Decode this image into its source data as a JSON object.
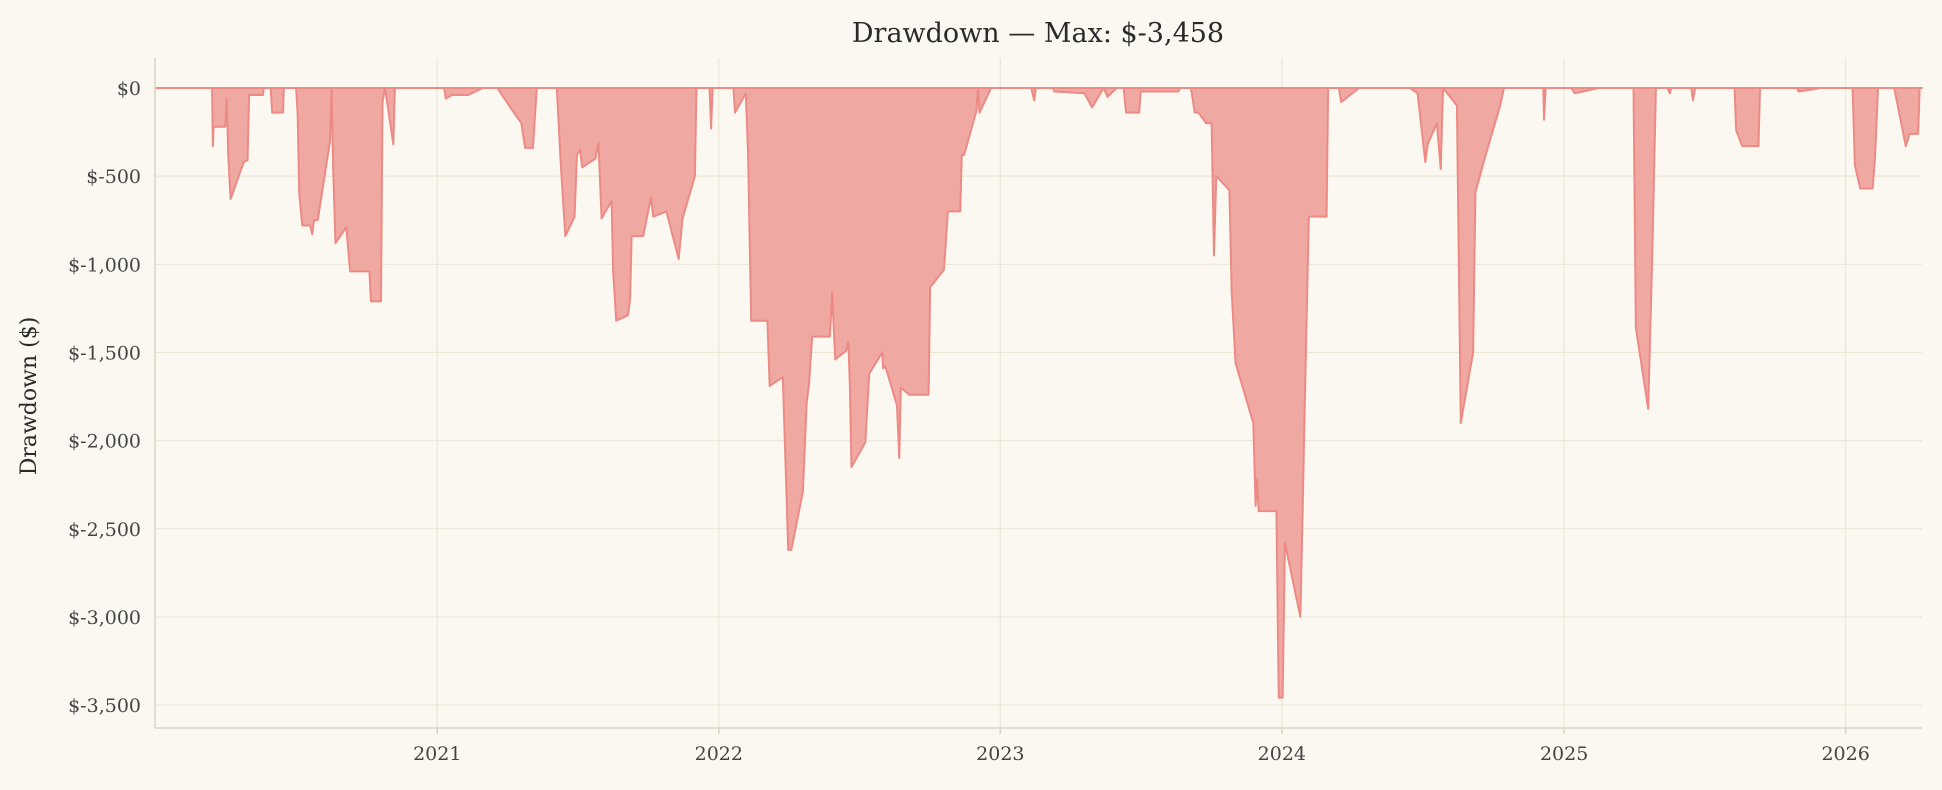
{
  "chart_data": {
    "type": "area",
    "title": "Drawdown — Max: $-3,458",
    "xlabel": "",
    "ylabel": "Drawdown ($)",
    "xlim": [
      "2020-01-01",
      "2026-04-10"
    ],
    "ylim": [
      -3630,
      170
    ],
    "y_ticks": [
      0,
      -500,
      -1000,
      -1500,
      -2000,
      -2500,
      -3000,
      -3500
    ],
    "y_tick_labels": [
      "$0",
      "$-500",
      "$-1,000",
      "$-1,500",
      "$-2,000",
      "$-2,500",
      "$-3,000",
      "$-3,500"
    ],
    "x_ticks": [
      "2021-01-01",
      "2022-01-01",
      "2023-01-01",
      "2024-01-01",
      "2025-01-01",
      "2026-01-01"
    ],
    "x_tick_labels": [
      "2021",
      "2022",
      "2023",
      "2024",
      "2025",
      "2026"
    ],
    "grid": true,
    "fill_color": "#f0a9a2",
    "line_color": "#ec8a86",
    "series": [
      {
        "points": [
          [
            "2020-01-01",
            0
          ],
          [
            "2020-03-15",
            0
          ],
          [
            "2020-03-16",
            -330
          ],
          [
            "2020-03-17",
            -220
          ],
          [
            "2020-04-01",
            -220
          ],
          [
            "2020-04-03",
            -60
          ],
          [
            "2020-04-05",
            -380
          ],
          [
            "2020-04-08",
            -630
          ],
          [
            "2020-04-25",
            -420
          ],
          [
            "2020-04-30",
            -410
          ],
          [
            "2020-05-02",
            -40
          ],
          [
            "2020-05-20",
            -40
          ],
          [
            "2020-05-21",
            0
          ],
          [
            "2020-05-30",
            0
          ],
          [
            "2020-06-01",
            -140
          ],
          [
            "2020-06-15",
            -140
          ],
          [
            "2020-06-16",
            0
          ],
          [
            "2020-07-02",
            0
          ],
          [
            "2020-07-04",
            -150
          ],
          [
            "2020-07-06",
            -600
          ],
          [
            "2020-07-10",
            -780
          ],
          [
            "2020-07-20",
            -780
          ],
          [
            "2020-07-23",
            -830
          ],
          [
            "2020-07-25",
            -750
          ],
          [
            "2020-07-30",
            -750
          ],
          [
            "2020-08-15",
            -300
          ],
          [
            "2020-08-17",
            0
          ],
          [
            "2020-08-19",
            -450
          ],
          [
            "2020-08-22",
            -880
          ],
          [
            "2020-09-05",
            -790
          ],
          [
            "2020-09-10",
            -1040
          ],
          [
            "2020-10-05",
            -1040
          ],
          [
            "2020-10-07",
            -1210
          ],
          [
            "2020-10-20",
            -1210
          ],
          [
            "2020-10-22",
            -80
          ],
          [
            "2020-10-25",
            0
          ],
          [
            "2020-10-28",
            -80
          ],
          [
            "2020-11-05",
            -320
          ],
          [
            "2020-11-07",
            0
          ],
          [
            "2021-01-10",
            0
          ],
          [
            "2021-01-12",
            -60
          ],
          [
            "2021-01-20",
            -40
          ],
          [
            "2021-02-10",
            -40
          ],
          [
            "2021-03-01",
            0
          ],
          [
            "2021-03-20",
            0
          ],
          [
            "2021-04-01",
            -80
          ],
          [
            "2021-04-20",
            -200
          ],
          [
            "2021-04-22",
            -260
          ],
          [
            "2021-04-25",
            -340
          ],
          [
            "2021-05-05",
            -340
          ],
          [
            "2021-05-10",
            0
          ],
          [
            "2021-06-05",
            0
          ],
          [
            "2021-06-10",
            -420
          ],
          [
            "2021-06-16",
            -840
          ],
          [
            "2021-06-28",
            -730
          ],
          [
            "2021-07-01",
            -380
          ],
          [
            "2021-07-05",
            -350
          ],
          [
            "2021-07-08",
            -450
          ],
          [
            "2021-07-25",
            -400
          ],
          [
            "2021-07-29",
            -310
          ],
          [
            "2021-08-02",
            -740
          ],
          [
            "2021-08-15",
            -640
          ],
          [
            "2021-08-17",
            -1040
          ],
          [
            "2021-08-21",
            -1320
          ],
          [
            "2021-09-05",
            -1290
          ],
          [
            "2021-09-08",
            -1200
          ],
          [
            "2021-09-10",
            -840
          ],
          [
            "2021-09-25",
            -840
          ],
          [
            "2021-10-05",
            -620
          ],
          [
            "2021-10-08",
            -730
          ],
          [
            "2021-10-25",
            -700
          ],
          [
            "2021-11-10",
            -970
          ],
          [
            "2021-11-15",
            -740
          ],
          [
            "2021-12-01",
            -500
          ],
          [
            "2021-12-03",
            0
          ],
          [
            "2021-12-20",
            0
          ],
          [
            "2021-12-22",
            -230
          ],
          [
            "2021-12-24",
            0
          ],
          [
            "2022-01-20",
            0
          ],
          [
            "2022-01-22",
            -140
          ],
          [
            "2022-02-05",
            -30
          ],
          [
            "2022-02-08",
            -380
          ],
          [
            "2022-02-12",
            -1320
          ],
          [
            "2022-03-05",
            -1320
          ],
          [
            "2022-03-08",
            -1690
          ],
          [
            "2022-03-25",
            -1640
          ],
          [
            "2022-04-01",
            -2620
          ],
          [
            "2022-04-05",
            -2620
          ],
          [
            "2022-04-20",
            -2290
          ],
          [
            "2022-04-25",
            -1780
          ],
          [
            "2022-04-28",
            -1680
          ],
          [
            "2022-05-02",
            -1410
          ],
          [
            "2022-05-25",
            -1410
          ],
          [
            "2022-05-28",
            -1160
          ],
          [
            "2022-05-30",
            -1360
          ],
          [
            "2022-06-01",
            -1540
          ],
          [
            "2022-06-15",
            -1490
          ],
          [
            "2022-06-18",
            -1440
          ],
          [
            "2022-06-20",
            -1700
          ],
          [
            "2022-06-22",
            -2150
          ],
          [
            "2022-07-10",
            -2010
          ],
          [
            "2022-07-15",
            -1620
          ],
          [
            "2022-08-01",
            -1500
          ],
          [
            "2022-08-02",
            -1590
          ],
          [
            "2022-08-05",
            -1580
          ],
          [
            "2022-08-20",
            -1800
          ],
          [
            "2022-08-23",
            -2100
          ],
          [
            "2022-08-25",
            -1700
          ],
          [
            "2022-09-05",
            -1740
          ],
          [
            "2022-09-30",
            -1740
          ],
          [
            "2022-10-02",
            -1130
          ],
          [
            "2022-10-20",
            -1030
          ],
          [
            "2022-10-25",
            -700
          ],
          [
            "2022-11-10",
            -700
          ],
          [
            "2022-11-12",
            -380
          ],
          [
            "2022-11-15",
            -380
          ],
          [
            "2022-12-01",
            -130
          ],
          [
            "2022-12-03",
            0
          ],
          [
            "2022-12-05",
            -140
          ],
          [
            "2022-12-20",
            0
          ],
          [
            "2023-02-10",
            0
          ],
          [
            "2023-02-14",
            -70
          ],
          [
            "2023-02-16",
            0
          ],
          [
            "2023-03-10",
            0
          ],
          [
            "2023-03-12",
            -20
          ],
          [
            "2023-04-20",
            -30
          ],
          [
            "2023-04-30",
            -110
          ],
          [
            "2023-05-15",
            0
          ],
          [
            "2023-05-20",
            -50
          ],
          [
            "2023-06-01",
            0
          ],
          [
            "2023-06-10",
            0
          ],
          [
            "2023-06-13",
            -140
          ],
          [
            "2023-06-30",
            -140
          ],
          [
            "2023-07-02",
            -20
          ],
          [
            "2023-08-20",
            -20
          ],
          [
            "2023-08-22",
            0
          ],
          [
            "2023-09-05",
            0
          ],
          [
            "2023-09-07",
            -50
          ],
          [
            "2023-09-10",
            -140
          ],
          [
            "2023-09-15",
            -140
          ],
          [
            "2023-09-25",
            -200
          ],
          [
            "2023-10-02",
            -200
          ],
          [
            "2023-10-05",
            -950
          ],
          [
            "2023-10-08",
            -500
          ],
          [
            "2023-10-25",
            -580
          ],
          [
            "2023-10-28",
            -1160
          ],
          [
            "2023-11-02",
            -1560
          ],
          [
            "2023-11-25",
            -1900
          ],
          [
            "2023-11-28",
            -2370
          ],
          [
            "2023-11-30",
            -2220
          ],
          [
            "2023-12-02",
            -2400
          ],
          [
            "2023-12-25",
            -2400
          ],
          [
            "2023-12-28",
            -3458
          ],
          [
            "2024-01-02",
            -3458
          ],
          [
            "2024-01-05",
            -2580
          ],
          [
            "2024-01-25",
            -3000
          ],
          [
            "2024-01-28",
            -2400
          ],
          [
            "2024-01-30",
            -1940
          ],
          [
            "2024-02-05",
            -730
          ],
          [
            "2024-02-28",
            -730
          ],
          [
            "2024-03-01",
            0
          ],
          [
            "2024-03-15",
            0
          ],
          [
            "2024-03-18",
            -80
          ],
          [
            "2024-04-10",
            0
          ],
          [
            "2024-06-15",
            0
          ],
          [
            "2024-06-25",
            -30
          ],
          [
            "2024-07-05",
            -420
          ],
          [
            "2024-07-08",
            -320
          ],
          [
            "2024-07-20",
            -200
          ],
          [
            "2024-07-25",
            -460
          ],
          [
            "2024-07-28",
            0
          ],
          [
            "2024-08-15",
            -100
          ],
          [
            "2024-08-20",
            -1900
          ],
          [
            "2024-09-05",
            -1500
          ],
          [
            "2024-09-08",
            -590
          ],
          [
            "2024-09-20",
            -400
          ],
          [
            "2024-10-10",
            -100
          ],
          [
            "2024-10-15",
            0
          ],
          [
            "2024-12-05",
            0
          ],
          [
            "2024-12-06",
            -180
          ],
          [
            "2024-12-08",
            0
          ],
          [
            "2025-01-10",
            0
          ],
          [
            "2025-01-15",
            -30
          ],
          [
            "2025-02-15",
            0
          ],
          [
            "2025-04-01",
            0
          ],
          [
            "2025-04-04",
            -1360
          ],
          [
            "2025-04-20",
            -1820
          ],
          [
            "2025-04-25",
            -1000
          ],
          [
            "2025-04-30",
            0
          ],
          [
            "2025-05-15",
            0
          ],
          [
            "2025-05-18",
            -30
          ],
          [
            "2025-05-20",
            0
          ],
          [
            "2025-06-15",
            0
          ],
          [
            "2025-06-17",
            -70
          ],
          [
            "2025-06-20",
            0
          ],
          [
            "2025-08-10",
            0
          ],
          [
            "2025-08-12",
            -240
          ],
          [
            "2025-08-20",
            -330
          ],
          [
            "2025-09-10",
            -330
          ],
          [
            "2025-09-12",
            0
          ],
          [
            "2025-10-30",
            0
          ],
          [
            "2025-11-01",
            -20
          ],
          [
            "2025-11-30",
            0
          ],
          [
            "2026-01-10",
            0
          ],
          [
            "2026-01-13",
            -440
          ],
          [
            "2026-01-20",
            -570
          ],
          [
            "2026-02-05",
            -570
          ],
          [
            "2026-02-08",
            -400
          ],
          [
            "2026-02-12",
            0
          ],
          [
            "2026-03-05",
            0
          ],
          [
            "2026-03-20",
            -330
          ],
          [
            "2026-03-25",
            -260
          ],
          [
            "2026-04-05",
            -260
          ],
          [
            "2026-04-07",
            0
          ],
          [
            "2026-04-10",
            0
          ]
        ]
      }
    ]
  }
}
